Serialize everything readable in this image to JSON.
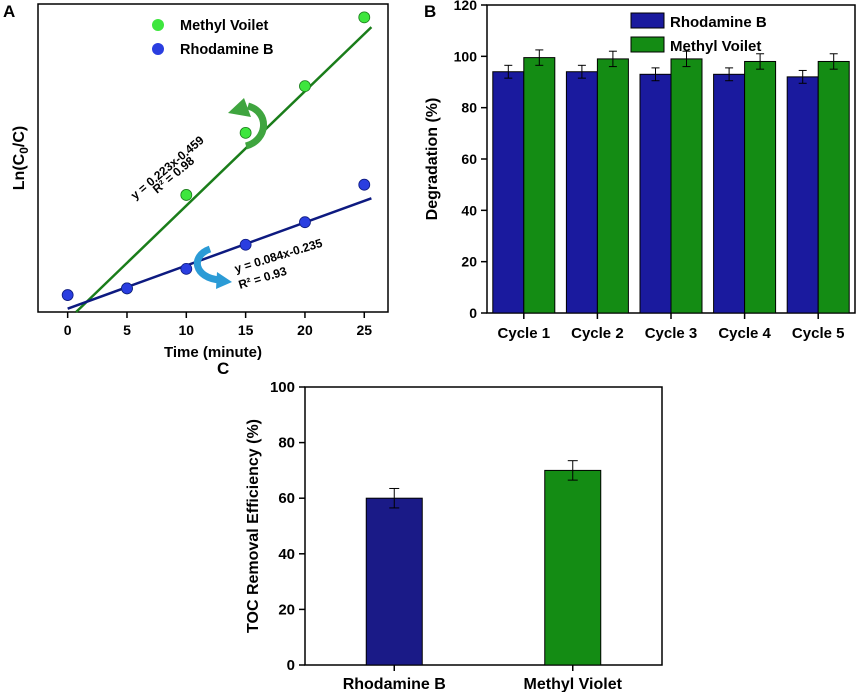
{
  "chart_data": [
    {
      "id": "A",
      "type": "scatter",
      "panel_label": "A",
      "xlabel": "Time (minute)",
      "ylabel_parts": [
        "Ln(C",
        "0",
        "/C)"
      ],
      "xlim": [
        -2.5,
        27
      ],
      "ylim": [
        -0.3,
        5.7
      ],
      "xticks": [
        0,
        5,
        10,
        15,
        20,
        25
      ],
      "series": [
        {
          "name": "Methyl Voilet",
          "color": "#1a7d1a",
          "marker_color": "#3ee63e",
          "x": [
            5,
            10,
            15,
            20,
            25
          ],
          "y": [
            0.16,
            1.98,
            3.19,
            4.1,
            5.44
          ],
          "fit": {
            "slope": 0.223,
            "intercept": -0.459
          },
          "equation": "y = 0.223x-0.459",
          "r2": "R² = 0.98"
        },
        {
          "name": "Rhodamine B",
          "color": "#0d1a80",
          "marker_color": "#2a3ee0",
          "x": [
            0,
            5,
            10,
            15,
            20,
            25
          ],
          "y": [
            0.03,
            0.16,
            0.54,
            1.01,
            1.45,
            2.18
          ],
          "fit": {
            "slope": 0.084,
            "intercept": -0.235
          },
          "equation": "y = 0.084x-0.235",
          "r2": "R² =  0.93"
        }
      ]
    },
    {
      "id": "B",
      "type": "bar",
      "panel_label": "B",
      "ylabel": "Degradation (%)",
      "ylim": [
        0,
        120
      ],
      "yticks": [
        0,
        20,
        40,
        60,
        80,
        100,
        120
      ],
      "categories": [
        "Cycle 1",
        "Cycle 2",
        "Cycle 3",
        "Cycle 4",
        "Cycle 5"
      ],
      "series": [
        {
          "name": "Rhodamine B",
          "color": "#1a1a9e",
          "values": [
            94,
            94,
            93,
            93,
            92
          ],
          "errors": [
            2.5,
            2.5,
            2.5,
            2.5,
            2.5
          ]
        },
        {
          "name": "Methyl Voilet",
          "color": "#148c14",
          "values": [
            99.5,
            99,
            99,
            98,
            98
          ],
          "errors": [
            3,
            3,
            3,
            3,
            3
          ]
        }
      ]
    },
    {
      "id": "C",
      "type": "bar",
      "panel_label": "C",
      "ylabel": "TOC Removal Efficiency (%)",
      "ylim": [
        0,
        100
      ],
      "yticks": [
        0,
        20,
        40,
        60,
        80,
        100
      ],
      "categories": [
        "Rhodamine B",
        "Methyl Violet"
      ],
      "values": [
        60,
        70
      ],
      "errors": [
        3.5,
        3.5
      ],
      "colors": [
        "#1a1a87",
        "#148c14"
      ]
    }
  ]
}
